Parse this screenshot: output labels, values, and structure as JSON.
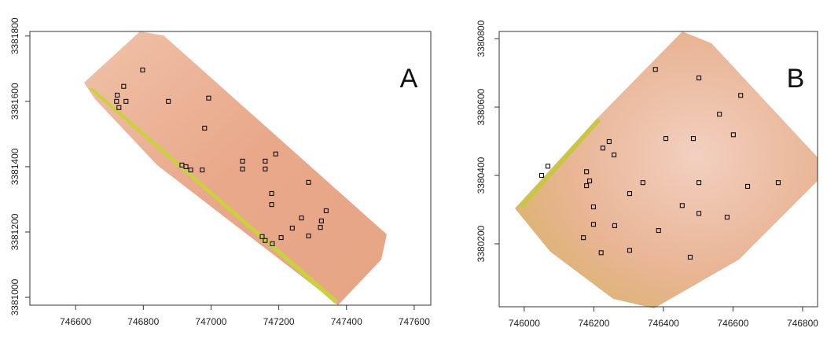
{
  "chart_data": [
    {
      "type": "scatter",
      "panel_label": "A",
      "marker_color": "#111111",
      "x": [
        746798,
        746742,
        746723,
        746749,
        746721,
        746728,
        746874,
        746993,
        746981,
        746914,
        746926,
        746940,
        746974,
        747093,
        747093,
        747160,
        747191,
        747160,
        747179,
        747179,
        747288,
        747267,
        747240,
        747207,
        747288,
        747326,
        747323,
        747340,
        747151,
        747160,
        747181
      ],
      "y": [
        3381696,
        3381646,
        3381619,
        3381600,
        3381600,
        3381581,
        3381600,
        3381610,
        3381518,
        3381405,
        3381400,
        3381390,
        3381390,
        3381417,
        3381393,
        3381417,
        3381439,
        3381393,
        3381318,
        3381284,
        3381352,
        3381243,
        3381212,
        3381183,
        3381188,
        3381234,
        3381214,
        3381265,
        3381186,
        3381174,
        3381164
      ],
      "xlim": [
        746465,
        747649
      ],
      "ylim": [
        3380976,
        3381814
      ],
      "xticks": [
        746600,
        746800,
        747000,
        747200,
        747400,
        747600
      ],
      "yticks": [
        3381000,
        3381200,
        3381400,
        3381600,
        3381800
      ]
    },
    {
      "type": "scatter",
      "panel_label": "B",
      "marker_color": "#111111",
      "x": [
        746377,
        746502,
        746622,
        746561,
        746407,
        746486,
        746601,
        746244,
        746226,
        746258,
        746068,
        746050,
        746179,
        746188,
        746179,
        746341,
        746502,
        746642,
        746730,
        746303,
        746199,
        746454,
        746502,
        746583,
        746199,
        746260,
        746386,
        746170,
        746303,
        746221,
        746477
      ],
      "y": [
        3380710,
        3380685,
        3380634,
        3380579,
        3380508,
        3380508,
        3380519,
        3380499,
        3380480,
        3380460,
        3380427,
        3380400,
        3380411,
        3380384,
        3380370,
        3380379,
        3380379,
        3380368,
        3380379,
        3380347,
        3380308,
        3380312,
        3380289,
        3380278,
        3380257,
        3380253,
        3380239,
        3380218,
        3380181,
        3380174,
        3380161
      ],
      "xlim": [
        745928,
        746843
      ],
      "ylim": [
        3380016,
        3380821
      ],
      "xticks": [
        746000,
        746200,
        746400,
        746600,
        746800
      ],
      "yticks": [
        3380200,
        3380400,
        3380600,
        3380800
      ]
    }
  ]
}
